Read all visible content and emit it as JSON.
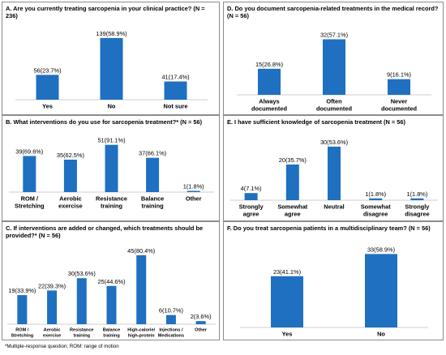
{
  "footnote": "*Multiple-response question; ROM: range of motion",
  "chart_data": [
    {
      "id": "A",
      "type": "bar",
      "title": "A. Are you currently treating sarcopenia in your clinical practice? (N = 236)",
      "categories": [
        "Yes",
        "No",
        "Not sure"
      ],
      "values": [
        23.7,
        58.9,
        17.4
      ],
      "labels": [
        "56(23.7%)",
        "139(58.9%)",
        "41(17.4%)"
      ],
      "ylim": [
        0,
        65
      ]
    },
    {
      "id": "D",
      "type": "bar",
      "title": "D. Do you document sarcopenia-related treatments in the medical record? (N = 56)",
      "categories": [
        "Always documented",
        "Often documented",
        "Never documented"
      ],
      "values": [
        26.8,
        57.1,
        16.1
      ],
      "labels": [
        "15(26.8%)",
        "32(57.1%)",
        "9(16.1%)"
      ],
      "ylim": [
        0,
        65
      ]
    },
    {
      "id": "B",
      "type": "bar",
      "title": "B. What interventions do you use for sarcopenia treatment?* (N = 56)",
      "categories": [
        "ROM / Stretching",
        "Aerobic exercise",
        "Resistance training",
        "Balance training",
        "Other"
      ],
      "values": [
        69.6,
        62.5,
        91.1,
        66.1,
        1.8
      ],
      "labels": [
        "39(69.6%)",
        "35(62.5%)",
        "51(91.1%)",
        "37(66.1%)",
        "1(1.8%)"
      ],
      "ylim": [
        0,
        100
      ]
    },
    {
      "id": "E",
      "type": "bar",
      "title": "E. I have sufficient knowledge of sarcopenia treatment (N = 56)",
      "categories": [
        "Strongly agree",
        "Somewhat agree",
        "Neutral",
        "Somewhat disagree",
        "Strongly disagree"
      ],
      "values": [
        7.1,
        35.7,
        53.6,
        1.8,
        1.8
      ],
      "labels": [
        "4(7.1%)",
        "20(35.7%)",
        "30(53.6%)",
        "1(1.8%)",
        "1(1.8%)"
      ],
      "ylim": [
        0,
        60
      ]
    },
    {
      "id": "C",
      "type": "bar",
      "title": "C. If interventions are added or changed, which treatments should be provided?* (N = 56)",
      "categories": [
        "ROM / Stretching",
        "Aerobic exercise",
        "Resistance training",
        "Balance training",
        "High-calorie/ high-protein",
        "Injections / Medications",
        "Other"
      ],
      "values": [
        33.9,
        39.3,
        53.6,
        44.6,
        80.4,
        10.7,
        3.6
      ],
      "labels": [
        "19(33.9%)",
        "22(39.3%)",
        "30(53.6%)",
        "25(44.6%)",
        "45(80.4%)",
        "6(10.7%)",
        "2(3.6%)"
      ],
      "ylim": [
        0,
        85
      ]
    },
    {
      "id": "F",
      "type": "bar",
      "title": "F. Do you treat sarcopenia patients in a multidisciplinary team? (N = 56)",
      "categories": [
        "Yes",
        "No"
      ],
      "values": [
        41.1,
        58.9
      ],
      "labels": [
        "23(41.1%)",
        "33(58.9%)"
      ],
      "ylim": [
        0,
        65
      ]
    }
  ]
}
